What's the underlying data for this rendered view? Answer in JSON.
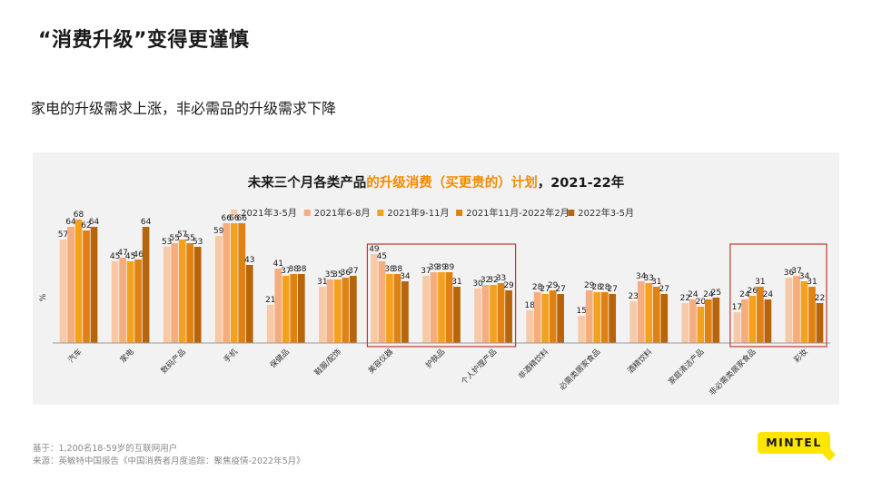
{
  "slide": {
    "title": "“消费升级”变得更谨慎",
    "subtitle": "家电的升级需求上涨，非必需品的升级需求下降"
  },
  "footnotes": {
    "base": "基于：1,200名18-59岁的互联网用户",
    "source": "来源：英敏特中国报告《中国消费者月度追踪：聚焦疫情-2022年5月》"
  },
  "logo": {
    "text": "MINTEL"
  },
  "chart_data": {
    "type": "bar",
    "title_parts": [
      {
        "text": "未来三个月各类产品",
        "color": "#1a1a1a"
      },
      {
        "text": "的升级消费（买更贵的）计划",
        "color": "#f28c00"
      },
      {
        "text": "，2021-22年",
        "color": "#1a1a1a"
      }
    ],
    "ylabel": "%",
    "ylim": [
      0,
      75
    ],
    "grid": false,
    "legend_position": "top",
    "categories": [
      "汽车",
      "家电",
      "数码产品",
      "手机",
      "保健品",
      "鞋服/配饰",
      "美容仪器",
      "护肤品",
      "个人护理产品",
      "非酒精饮料",
      "必需类居家食品",
      "酒精饮料",
      "家庭清洁产品",
      "非必需类居家食品",
      "彩妆"
    ],
    "series": [
      {
        "name": "2021年3-5月",
        "color": "#f8c9a6",
        "values": [
          57,
          45,
          53,
          59,
          21,
          31,
          49,
          37,
          30,
          18,
          15,
          23,
          22,
          17,
          36
        ]
      },
      {
        "name": "2021年6-8月",
        "color": "#f5ad7d",
        "values": [
          64,
          47,
          55,
          66,
          41,
          35,
          45,
          39,
          32,
          28,
          29,
          34,
          24,
          24,
          37
        ]
      },
      {
        "name": "2021年9-11月",
        "color": "#f4a11e",
        "values": [
          68,
          45,
          57,
          66,
          37,
          35,
          38,
          39,
          32,
          27,
          28,
          33,
          20,
          26,
          34
        ]
      },
      {
        "name": "2021年11月-2022年2月",
        "color": "#df8213",
        "values": [
          62,
          46,
          55,
          66,
          38,
          36,
          38,
          39,
          33,
          29,
          28,
          31,
          24,
          31,
          31
        ]
      },
      {
        "name": "2022年3-5月",
        "color": "#b8640a",
        "values": [
          64,
          64,
          53,
          43,
          38,
          37,
          34,
          31,
          29,
          27,
          27,
          27,
          25,
          24,
          22
        ]
      }
    ],
    "highlight_boxes": [
      {
        "from": 6,
        "to": 8,
        "color": "#c0392b"
      },
      {
        "from": 13,
        "to": 14,
        "color": "#c0392b"
      }
    ]
  }
}
